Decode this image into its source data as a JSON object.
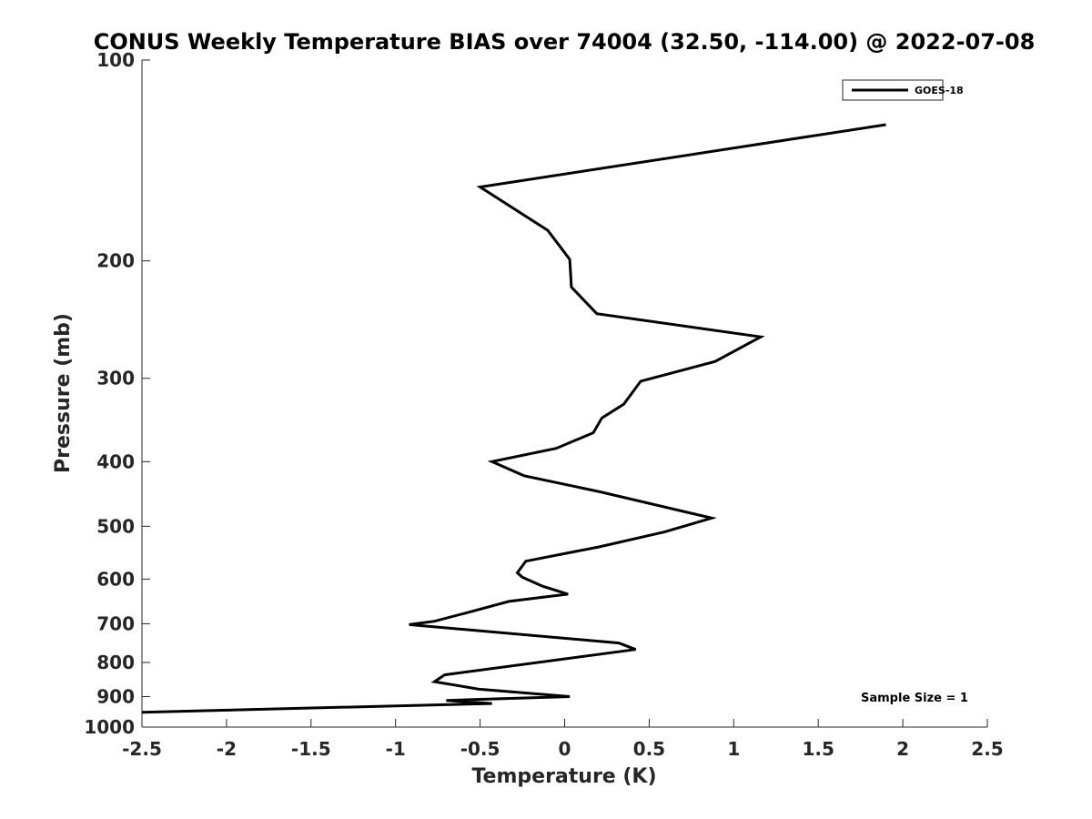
{
  "chart_data": {
    "type": "line",
    "title": "CONUS Weekly Temperature BIAS over 74004 (32.50, -114.00) @ 2022-07-08",
    "xlabel": "Temperature (K)",
    "ylabel": "Pressure (mb)",
    "xlim": [
      -2.5,
      2.5
    ],
    "ylim": [
      100,
      1000
    ],
    "y_scale": "log",
    "y_reversed": true,
    "x_ticks": [
      "-2.5",
      "-2",
      "-1.5",
      "-1",
      "-0.5",
      "0",
      "0.5",
      "1",
      "1.5",
      "2",
      "2.5"
    ],
    "x_tick_values": [
      -2.5,
      -2,
      -1.5,
      -1,
      -0.5,
      0,
      0.5,
      1,
      1.5,
      2,
      2.5
    ],
    "y_ticks": [
      "100",
      "200",
      "300",
      "400",
      "500",
      "600",
      "700",
      "800",
      "900",
      "1000"
    ],
    "y_tick_values": [
      100,
      200,
      300,
      400,
      500,
      600,
      700,
      800,
      900,
      1000
    ],
    "grid": false,
    "legend_position": "top-right",
    "annotation": "Sample Size = 1",
    "series": [
      {
        "name": "GOES-18",
        "color": "#000000",
        "x": [
          1.9,
          -0.5,
          -0.1,
          0.03,
          0.04,
          0.19,
          1.16,
          0.89,
          0.45,
          0.35,
          0.22,
          0.17,
          -0.05,
          -0.43,
          -0.24,
          0.21,
          0.87,
          0.59,
          0.2,
          -0.23,
          -0.28,
          -0.25,
          -0.13,
          0.02,
          -0.33,
          -0.57,
          -0.77,
          -0.92,
          0.32,
          0.42,
          -0.71,
          -0.77,
          -0.51,
          0.03,
          -0.7,
          -0.43,
          -2.5
        ],
        "y": [
          125,
          155,
          180,
          199,
          219,
          240,
          260,
          283,
          303,
          328,
          344,
          362,
          382,
          400,
          420,
          444,
          486,
          510,
          537,
          564,
          587,
          596,
          615,
          632,
          648,
          673,
          694,
          702,
          748,
          765,
          835,
          855,
          877,
          900,
          912,
          922,
          950
        ]
      }
    ]
  }
}
